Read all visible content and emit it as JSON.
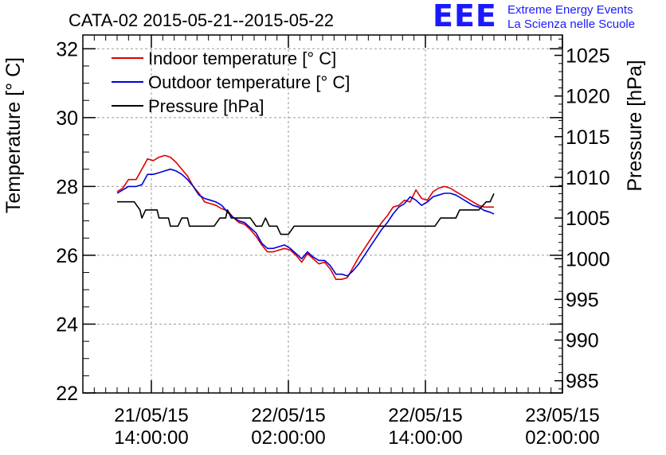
{
  "logo": {
    "letters": "EEE",
    "line1": "Extreme Energy Events",
    "line2": "La Scienza nelle Scuole",
    "color": "#1a1aff"
  },
  "chart_data": {
    "type": "line",
    "title": "CATA-02 2015-05-21--2015-05-22",
    "ylabel": "Temperature [° C]",
    "y2label": "Pressure [hPa]",
    "ylim": [
      22,
      32.4
    ],
    "y2lim": [
      983.5,
      1027.5
    ],
    "yticks": [
      "22",
      "24",
      "26",
      "28",
      "30",
      "32"
    ],
    "y2ticks": [
      "985",
      "990",
      "995",
      "1000",
      "1005",
      "1010",
      "1015",
      "1020",
      "1025"
    ],
    "xlim": [
      "2015-05-21 08:00",
      "2015-05-23 02:00"
    ],
    "xticks": [
      {
        "at": "2015-05-21 14:00",
        "line1": "21/05/15",
        "line2": "14:00:00"
      },
      {
        "at": "2015-05-22 02:00",
        "line1": "22/05/15",
        "line2": "02:00:00"
      },
      {
        "at": "2015-05-22 14:00",
        "line1": "22/05/15",
        "line2": "14:00:00"
      },
      {
        "at": "2015-05-23 02:00",
        "line1": "23/05/15",
        "line2": "02:00:00"
      }
    ],
    "grid": true,
    "legend_position": "top-left",
    "series": [
      {
        "name": "Indoor temperature [° C]",
        "color": "#dd0000",
        "axis": "left",
        "points": [
          [
            "2015-05-21 11:00",
            27.85
          ],
          [
            "2015-05-21 11:30",
            27.95
          ],
          [
            "2015-05-21 12:00",
            28.2
          ],
          [
            "2015-05-21 12:40",
            28.2
          ],
          [
            "2015-05-21 13:10",
            28.5
          ],
          [
            "2015-05-21 13:40",
            28.8
          ],
          [
            "2015-05-21 14:10",
            28.75
          ],
          [
            "2015-05-21 14:40",
            28.85
          ],
          [
            "2015-05-21 15:10",
            28.9
          ],
          [
            "2015-05-21 15:40",
            28.85
          ],
          [
            "2015-05-21 16:10",
            28.7
          ],
          [
            "2015-05-21 16:40",
            28.5
          ],
          [
            "2015-05-21 17:10",
            28.3
          ],
          [
            "2015-05-21 17:40",
            28.0
          ],
          [
            "2015-05-21 18:10",
            27.8
          ],
          [
            "2015-05-21 18:40",
            27.55
          ],
          [
            "2015-05-21 19:10",
            27.5
          ],
          [
            "2015-05-21 19:40",
            27.45
          ],
          [
            "2015-05-21 20:10",
            27.35
          ],
          [
            "2015-05-21 20:40",
            27.3
          ],
          [
            "2015-05-21 21:10",
            27.1
          ],
          [
            "2015-05-21 21:40",
            26.95
          ],
          [
            "2015-05-21 22:10",
            26.9
          ],
          [
            "2015-05-21 22:40",
            26.75
          ],
          [
            "2015-05-21 23:10",
            26.55
          ],
          [
            "2015-05-21 23:40",
            26.3
          ],
          [
            "2015-05-22 00:10",
            26.1
          ],
          [
            "2015-05-22 00:40",
            26.1
          ],
          [
            "2015-05-22 01:10",
            26.15
          ],
          [
            "2015-05-22 01:40",
            26.2
          ],
          [
            "2015-05-22 02:10",
            26.15
          ],
          [
            "2015-05-22 02:40",
            26.0
          ],
          [
            "2015-05-22 03:10",
            25.8
          ],
          [
            "2015-05-22 03:40",
            26.05
          ],
          [
            "2015-05-22 04:10",
            25.9
          ],
          [
            "2015-05-22 04:40",
            25.75
          ],
          [
            "2015-05-22 05:10",
            25.8
          ],
          [
            "2015-05-22 05:40",
            25.6
          ],
          [
            "2015-05-22 06:10",
            25.3
          ],
          [
            "2015-05-22 06:40",
            25.3
          ],
          [
            "2015-05-22 07:10",
            25.35
          ],
          [
            "2015-05-22 07:40",
            25.65
          ],
          [
            "2015-05-22 08:10",
            25.95
          ],
          [
            "2015-05-22 08:40",
            26.2
          ],
          [
            "2015-05-22 09:10",
            26.45
          ],
          [
            "2015-05-22 09:40",
            26.7
          ],
          [
            "2015-05-22 10:10",
            26.95
          ],
          [
            "2015-05-22 10:40",
            27.15
          ],
          [
            "2015-05-22 11:10",
            27.4
          ],
          [
            "2015-05-22 11:40",
            27.45
          ],
          [
            "2015-05-22 12:10",
            27.6
          ],
          [
            "2015-05-22 12:40",
            27.55
          ],
          [
            "2015-05-22 13:10",
            27.9
          ],
          [
            "2015-05-22 13:40",
            27.65
          ],
          [
            "2015-05-22 14:10",
            27.6
          ],
          [
            "2015-05-22 14:40",
            27.85
          ],
          [
            "2015-05-22 15:10",
            27.95
          ],
          [
            "2015-05-22 15:40",
            28.0
          ],
          [
            "2015-05-22 16:10",
            27.95
          ],
          [
            "2015-05-22 16:40",
            27.85
          ],
          [
            "2015-05-22 17:10",
            27.75
          ],
          [
            "2015-05-22 17:40",
            27.65
          ],
          [
            "2015-05-22 18:10",
            27.55
          ],
          [
            "2015-05-22 18:40",
            27.45
          ],
          [
            "2015-05-22 19:10",
            27.4
          ],
          [
            "2015-05-22 19:40",
            27.4
          ],
          [
            "2015-05-22 20:00",
            27.4
          ]
        ]
      },
      {
        "name": "Outdoor temperature [° C]",
        "color": "#0000dd",
        "axis": "left",
        "points": [
          [
            "2015-05-21 11:00",
            27.8
          ],
          [
            "2015-05-21 11:30",
            27.9
          ],
          [
            "2015-05-21 12:00",
            28.0
          ],
          [
            "2015-05-21 12:40",
            28.0
          ],
          [
            "2015-05-21 13:10",
            28.05
          ],
          [
            "2015-05-21 13:40",
            28.35
          ],
          [
            "2015-05-21 14:10",
            28.35
          ],
          [
            "2015-05-21 14:40",
            28.4
          ],
          [
            "2015-05-21 15:10",
            28.45
          ],
          [
            "2015-05-21 15:40",
            28.5
          ],
          [
            "2015-05-21 16:10",
            28.45
          ],
          [
            "2015-05-21 16:40",
            28.35
          ],
          [
            "2015-05-21 17:10",
            28.2
          ],
          [
            "2015-05-21 17:40",
            28.0
          ],
          [
            "2015-05-21 18:10",
            27.75
          ],
          [
            "2015-05-21 18:40",
            27.65
          ],
          [
            "2015-05-21 19:10",
            27.6
          ],
          [
            "2015-05-21 19:40",
            27.55
          ],
          [
            "2015-05-21 20:10",
            27.45
          ],
          [
            "2015-05-21 20:40",
            27.25
          ],
          [
            "2015-05-21 21:10",
            27.1
          ],
          [
            "2015-05-21 21:40",
            27.0
          ],
          [
            "2015-05-21 22:10",
            26.95
          ],
          [
            "2015-05-21 22:40",
            26.8
          ],
          [
            "2015-05-21 23:10",
            26.65
          ],
          [
            "2015-05-21 23:40",
            26.35
          ],
          [
            "2015-05-22 00:10",
            26.2
          ],
          [
            "2015-05-22 00:40",
            26.2
          ],
          [
            "2015-05-22 01:10",
            26.25
          ],
          [
            "2015-05-22 01:40",
            26.3
          ],
          [
            "2015-05-22 02:10",
            26.2
          ],
          [
            "2015-05-22 02:40",
            26.05
          ],
          [
            "2015-05-22 03:10",
            25.9
          ],
          [
            "2015-05-22 03:40",
            26.1
          ],
          [
            "2015-05-22 04:10",
            25.95
          ],
          [
            "2015-05-22 04:40",
            25.85
          ],
          [
            "2015-05-22 05:10",
            25.85
          ],
          [
            "2015-05-22 05:40",
            25.7
          ],
          [
            "2015-05-22 06:10",
            25.45
          ],
          [
            "2015-05-22 06:40",
            25.45
          ],
          [
            "2015-05-22 07:10",
            25.4
          ],
          [
            "2015-05-22 07:40",
            25.55
          ],
          [
            "2015-05-22 08:10",
            25.75
          ],
          [
            "2015-05-22 08:40",
            26.0
          ],
          [
            "2015-05-22 09:10",
            26.25
          ],
          [
            "2015-05-22 09:40",
            26.5
          ],
          [
            "2015-05-22 10:10",
            26.75
          ],
          [
            "2015-05-22 10:40",
            26.95
          ],
          [
            "2015-05-22 11:10",
            27.2
          ],
          [
            "2015-05-22 11:40",
            27.4
          ],
          [
            "2015-05-22 12:10",
            27.5
          ],
          [
            "2015-05-22 12:40",
            27.7
          ],
          [
            "2015-05-22 13:10",
            27.6
          ],
          [
            "2015-05-22 13:40",
            27.45
          ],
          [
            "2015-05-22 14:10",
            27.55
          ],
          [
            "2015-05-22 14:40",
            27.7
          ],
          [
            "2015-05-22 15:10",
            27.75
          ],
          [
            "2015-05-22 15:40",
            27.8
          ],
          [
            "2015-05-22 16:10",
            27.8
          ],
          [
            "2015-05-22 16:40",
            27.75
          ],
          [
            "2015-05-22 17:10",
            27.65
          ],
          [
            "2015-05-22 17:40",
            27.55
          ],
          [
            "2015-05-22 18:10",
            27.45
          ],
          [
            "2015-05-22 18:40",
            27.4
          ],
          [
            "2015-05-22 19:10",
            27.3
          ],
          [
            "2015-05-22 19:40",
            27.25
          ],
          [
            "2015-05-22 20:00",
            27.2
          ]
        ]
      },
      {
        "name": "Pressure [hPa]",
        "color": "#000000",
        "axis": "right",
        "points": [
          [
            "2015-05-21 11:00",
            1007
          ],
          [
            "2015-05-21 12:30",
            1007
          ],
          [
            "2015-05-21 13:00",
            1006
          ],
          [
            "2015-05-21 13:10",
            1005
          ],
          [
            "2015-05-21 13:30",
            1006
          ],
          [
            "2015-05-21 14:30",
            1006
          ],
          [
            "2015-05-21 14:40",
            1005
          ],
          [
            "2015-05-21 15:30",
            1005
          ],
          [
            "2015-05-21 15:40",
            1004
          ],
          [
            "2015-05-21 16:20",
            1004
          ],
          [
            "2015-05-21 16:40",
            1005
          ],
          [
            "2015-05-21 17:10",
            1005
          ],
          [
            "2015-05-21 17:20",
            1004
          ],
          [
            "2015-05-21 19:30",
            1004
          ],
          [
            "2015-05-21 20:00",
            1005
          ],
          [
            "2015-05-21 20:30",
            1005
          ],
          [
            "2015-05-21 20:40",
            1006
          ],
          [
            "2015-05-21 21:00",
            1005
          ],
          [
            "2015-05-21 22:40",
            1005
          ],
          [
            "2015-05-21 23:10",
            1004
          ],
          [
            "2015-05-21 23:40",
            1004
          ],
          [
            "2015-05-22 00:00",
            1005
          ],
          [
            "2015-05-22 00:20",
            1004
          ],
          [
            "2015-05-22 01:00",
            1004
          ],
          [
            "2015-05-22 01:20",
            1003
          ],
          [
            "2015-05-22 02:00",
            1003
          ],
          [
            "2015-05-22 02:30",
            1004
          ],
          [
            "2015-05-22 14:50",
            1004
          ],
          [
            "2015-05-22 15:20",
            1005
          ],
          [
            "2015-05-22 16:40",
            1005
          ],
          [
            "2015-05-22 17:00",
            1006
          ],
          [
            "2015-05-22 18:40",
            1006
          ],
          [
            "2015-05-22 19:20",
            1007
          ],
          [
            "2015-05-22 19:40",
            1007
          ],
          [
            "2015-05-22 20:00",
            1008
          ]
        ]
      }
    ]
  }
}
